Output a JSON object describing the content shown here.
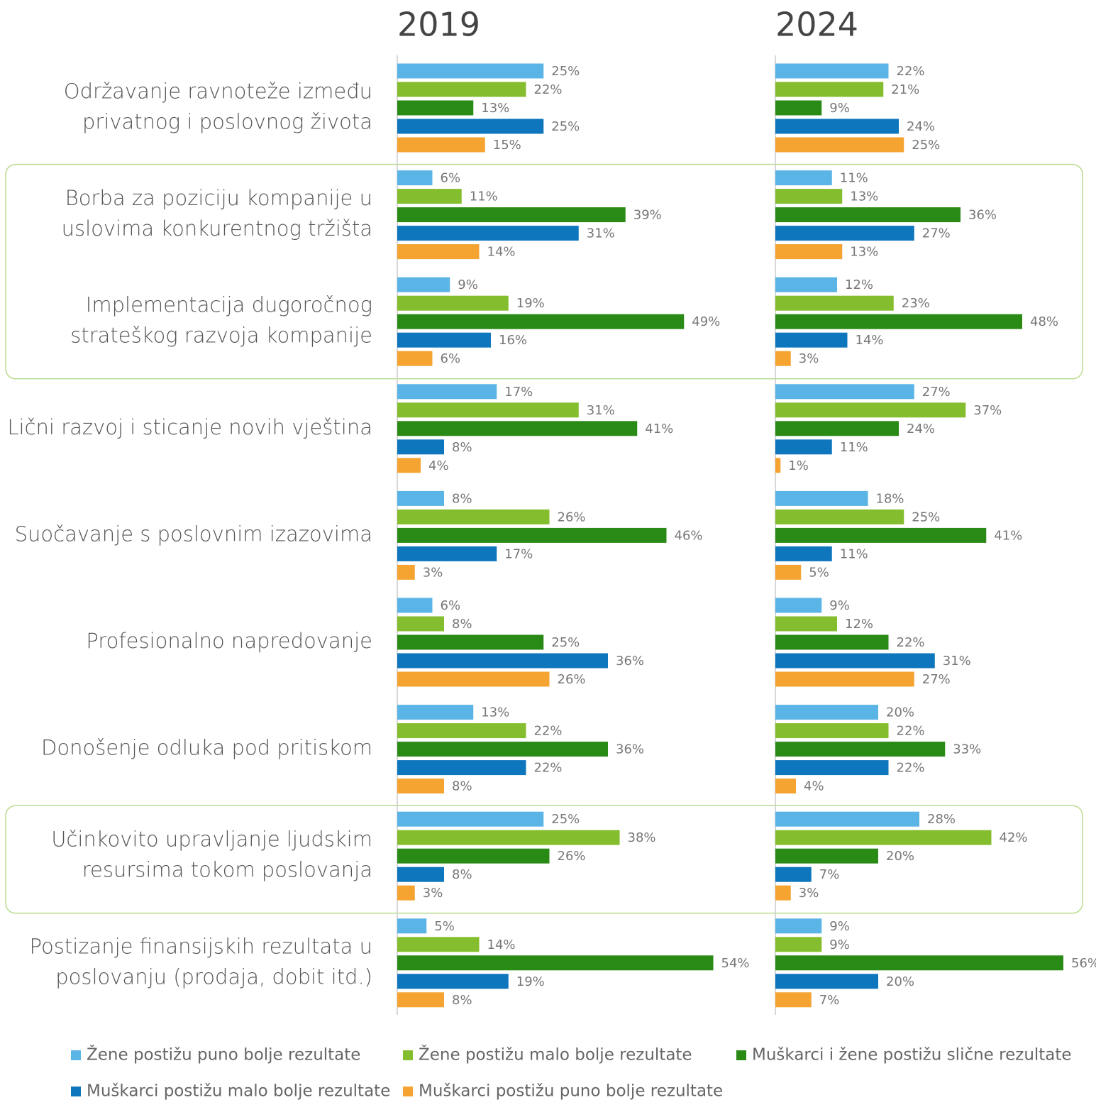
{
  "chart_data": [
    {
      "type": "bar",
      "orientation": "horizontal",
      "title": "2019",
      "categories": [
        "Održavanje ravnoteže između\nprivatnog i poslovnog života",
        "Borba za poziciju kompanije u\nuslovima konkurentnog tržišta",
        "Implementacija dugoročnog\nstrateškog razvoja kompanije",
        "Lični razvoj i sticanje novih vještina",
        "Suočavanje s poslovnim izazovima",
        "Profesionalno napredovanje",
        "Donošenje odluka pod pritiskom",
        "Učinkovito upravljanje ljudskim\nresursima tokom poslovanja",
        "Postizanje finansijskih rezultata u\nposlovanju (prodaja, dobit itd.)"
      ],
      "xlim": [
        0,
        60
      ],
      "series": [
        {
          "name": "Žene postižu puno bolje rezultate",
          "color": "#5ab4e5",
          "values": [
            25,
            6,
            9,
            17,
            8,
            6,
            13,
            25,
            5
          ],
          "value_labels": [
            "25%",
            "6%",
            "9%",
            "17%",
            "8%",
            "6%",
            "13%",
            "25%",
            "5%"
          ]
        },
        {
          "name": "Žene postižu malo bolje rezultate",
          "color": "#84bd2d",
          "values": [
            22,
            11,
            19,
            31,
            26,
            8,
            22,
            38,
            14
          ],
          "value_labels": [
            "22%",
            "11%",
            "19%",
            "31%",
            "26%",
            "8%",
            "22%",
            "38%",
            "14%"
          ]
        },
        {
          "name": "Muškarci i žene postižu slične rezultate",
          "color": "#2a8a16",
          "values": [
            13,
            39,
            49,
            41,
            46,
            25,
            36,
            26,
            54
          ],
          "value_labels": [
            "13%",
            "39%",
            "49%",
            "41%",
            "46%",
            "25%",
            "36%",
            "26%",
            "54%"
          ]
        },
        {
          "name": "Muškarci postižu malo bolje rezultate",
          "color": "#0e76bd",
          "values": [
            25,
            31,
            16,
            8,
            17,
            36,
            22,
            8,
            19
          ],
          "value_labels": [
            "25%",
            "31%",
            "16%",
            "8%",
            "17%",
            "36%",
            "22%",
            "8%",
            "19%"
          ]
        },
        {
          "name": "Muškarci postižu puno bolje rezultate",
          "color": "#f6a431",
          "values": [
            15,
            14,
            6,
            4,
            3,
            26,
            8,
            3,
            8
          ],
          "value_labels": [
            "15%",
            "14%",
            "6%",
            "4%",
            "3%",
            "26%",
            "8%",
            "3%",
            "8%"
          ]
        }
      ]
    },
    {
      "type": "bar",
      "orientation": "horizontal",
      "title": "2024",
      "xlim": [
        0,
        60
      ],
      "series": [
        {
          "color": "#5ab4e5",
          "values": [
            22,
            11,
            12,
            27,
            18,
            9,
            20,
            28,
            9
          ],
          "value_labels": [
            "22%",
            "11%",
            "12%",
            "27%",
            "18%",
            "9%",
            "20%",
            "28%",
            "9%"
          ]
        },
        {
          "color": "#84bd2d",
          "values": [
            21,
            13,
            23,
            37,
            25,
            12,
            22,
            42,
            9
          ],
          "value_labels": [
            "21%",
            "13%",
            "23%",
            "37%",
            "25%",
            "12%",
            "22%",
            "42%",
            "9%"
          ]
        },
        {
          "color": "#2a8a16",
          "values": [
            9,
            36,
            48,
            24,
            41,
            22,
            33,
            20,
            56
          ],
          "value_labels": [
            "9%",
            "36%",
            "48%",
            "24%",
            "41%",
            "22%",
            "33%",
            "20%",
            "56%"
          ]
        },
        {
          "color": "#0e76bd",
          "values": [
            24,
            27,
            14,
            11,
            11,
            31,
            22,
            7,
            20
          ],
          "value_labels": [
            "24%",
            "27%",
            "14%",
            "11%",
            "11%",
            "31%",
            "22%",
            "7%",
            "20%"
          ]
        },
        {
          "color": "#f6a431",
          "values": [
            25,
            13,
            3,
            1,
            5,
            27,
            4,
            3,
            7
          ],
          "value_labels": [
            "25%",
            "13%",
            "3%",
            "1%",
            "5%",
            "27%",
            "4%",
            "3%",
            "7%"
          ]
        }
      ]
    }
  ]
}
